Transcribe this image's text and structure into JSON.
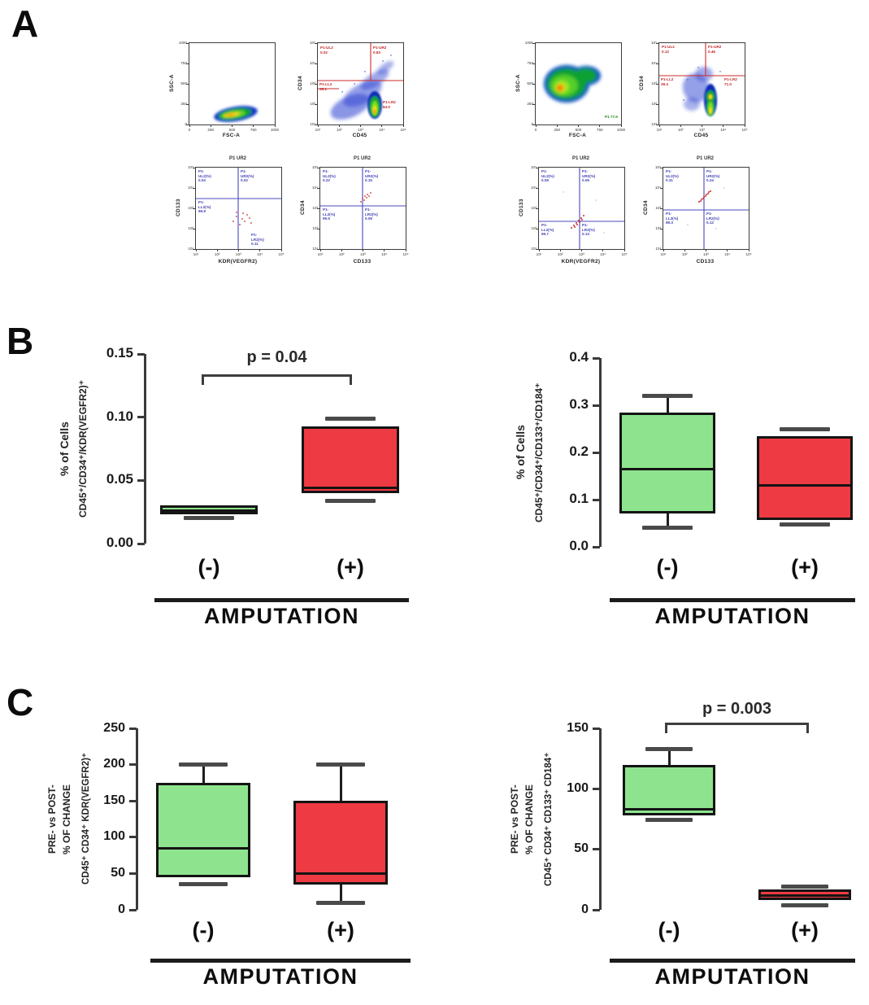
{
  "panels": {
    "a": "A",
    "b": "B",
    "c": "C"
  },
  "flow": {
    "log_ticks": [
      "10¹",
      "10²",
      "10³",
      "10⁴",
      "10⁵"
    ],
    "lin_ticks": [
      "0",
      "250",
      "500",
      "750",
      "1000"
    ],
    "groups": [
      {
        "name": "amputation-negative-representative",
        "plots": [
          {
            "key": "scatter",
            "x_label": "FSC-A",
            "y_label": "SSC-A",
            "scale": "lin"
          },
          {
            "key": "cd45",
            "x_label": "CD45",
            "y_label": "CD34",
            "scale": "log",
            "gates": {
              "tl": "P1-UL2 0.02",
              "tr": "P1-UR2 0.83",
              "ml": "P1-LL2 35.1",
              "br": "P1-LR2 64.0"
            }
          },
          {
            "key": "kdr",
            "title": "P1 UR2",
            "x_label": "KDR(VEGFR2)",
            "y_label": "CD133",
            "scale": "log",
            "gates": {
              "tl": "P1-UL2(%) 0.04",
              "tr": "P1-UR2(%) 0.02",
              "ml": "P1-LL2(%) 99.8",
              "br": "P1-LR2(%) 0.11"
            }
          },
          {
            "key": "cd133",
            "title": "P1 UR2",
            "x_label": "CD133",
            "y_label": "CD34",
            "scale": "log",
            "gates": {
              "tl": "P1-UL2(%) 0.22",
              "tr": "P1-UR2(%) 0.15",
              "ml": "P1-LL2(%) 99.5",
              "br": "P1-LR2(%) 0.09"
            }
          }
        ]
      },
      {
        "name": "amputation-positive-representative",
        "plots": [
          {
            "key": "scatter",
            "x_label": "FSC-A",
            "y_label": "SSC-A",
            "scale": "lin",
            "corner_label": "P1 77.9"
          },
          {
            "key": "cd45",
            "x_label": "CD45",
            "y_label": "CD34",
            "scale": "log",
            "gates": {
              "tl": "P1-UL2 0.12",
              "tr": "P1-UR2 0.46",
              "ml": "P1-LL2 28.4",
              "br": "P1-LR2 71.0"
            }
          },
          {
            "key": "kdr",
            "title": "P1 UR2",
            "x_label": "KDR(VEGFR2)",
            "y_label": "CD133",
            "scale": "log",
            "gates": {
              "tl": "P1-UL2(%) 0.09",
              "tr": "P1-UR2(%) 0.06",
              "bl": "P1-LL2(%) 99.7",
              "br": "P1-LR2(%) 0.13"
            }
          },
          {
            "key": "cd133",
            "title": "P1 UR2",
            "x_label": "CD133",
            "y_label": "CD34",
            "scale": "log",
            "gates": {
              "tl": "P1-UL2(%) 0.31",
              "tr": "P1-UR2(%) 0.24",
              "bl": "P1-LL2(%) 99.3",
              "br": "P1-LR2(%) 0.12"
            }
          }
        ]
      }
    ]
  },
  "chart_data": [
    {
      "type": "box",
      "panel": "B-left",
      "p_label": "p = 0.04",
      "ylabel_lines": [
        "% of Cells",
        "CD45⁺/CD34⁺/KDR(VEGFR2)⁺"
      ],
      "xlabel": "AMPUTATION",
      "categories": [
        "(-)",
        "(+)"
      ],
      "ylim": [
        0,
        0.15
      ],
      "yticks": [
        0,
        0.05,
        0.1,
        0.15
      ],
      "ytick_labels": [
        "0.00",
        "0.05",
        "0.10",
        "0.15"
      ],
      "grid": false,
      "series": [
        {
          "name": "amputation-negative",
          "color": "#8ee48e",
          "box": {
            "low": 0.02,
            "q1": 0.023,
            "median": 0.026,
            "q3": 0.03,
            "high": null
          }
        },
        {
          "name": "amputation-positive",
          "color": "#ee3a42",
          "box": {
            "low": 0.034,
            "q1": 0.04,
            "median": 0.044,
            "q3": 0.093,
            "high": 0.099
          }
        }
      ]
    },
    {
      "type": "box",
      "panel": "B-right",
      "p_label": null,
      "ylabel_lines": [
        "% of Cells",
        "CD45⁺/CD34⁺/CD133⁺/CD184⁺"
      ],
      "xlabel": "AMPUTATION",
      "categories": [
        "(-)",
        "(+)"
      ],
      "ylim": [
        0,
        0.4
      ],
      "yticks": [
        0,
        0.1,
        0.2,
        0.3,
        0.4
      ],
      "ytick_labels": [
        "0.0",
        "0.1",
        "0.2",
        "0.3",
        "0.4"
      ],
      "grid": false,
      "series": [
        {
          "name": "amputation-negative",
          "color": "#8ee48e",
          "box": {
            "low": 0.04,
            "q1": 0.07,
            "median": 0.165,
            "q3": 0.285,
            "high": 0.32
          }
        },
        {
          "name": "amputation-positive",
          "color": "#ee3a42",
          "box": {
            "low": 0.048,
            "q1": 0.057,
            "median": 0.13,
            "q3": 0.235,
            "high": 0.25
          }
        }
      ]
    },
    {
      "type": "box",
      "panel": "C-left",
      "p_label": null,
      "ylabel_lines": [
        "PRE- vs POST-",
        "% OF CHANGE",
        "CD45⁺ CD34⁺ KDR(VEGFR2)⁺"
      ],
      "xlabel": "AMPUTATION",
      "categories": [
        "(-)",
        "(+)"
      ],
      "ylim": [
        0,
        250
      ],
      "yticks": [
        0,
        50,
        100,
        150,
        200,
        250
      ],
      "ytick_labels": [
        "0",
        "50",
        "100",
        "150",
        "200",
        "250"
      ],
      "grid": false,
      "series": [
        {
          "name": "amputation-negative",
          "color": "#8ee48e",
          "box": {
            "low": 35,
            "q1": 45,
            "median": 85,
            "q3": 175,
            "high": 200
          }
        },
        {
          "name": "amputation-positive",
          "color": "#ee3a42",
          "box": {
            "low": 10,
            "q1": 35,
            "median": 50,
            "q3": 150,
            "high": 200
          }
        }
      ]
    },
    {
      "type": "box",
      "panel": "C-right",
      "p_label": "p = 0.003",
      "ylabel_lines": [
        "PRE- vs POST-",
        "% OF CHANGE",
        "CD45⁺ CD34⁺ CD133⁺ CD184⁺"
      ],
      "xlabel": "AMPUTATION",
      "categories": [
        "(-)",
        "(+)"
      ],
      "ylim": [
        0,
        150
      ],
      "yticks": [
        0,
        50,
        100,
        150
      ],
      "ytick_labels": [
        "0",
        "50",
        "100",
        "150"
      ],
      "grid": false,
      "series": [
        {
          "name": "amputation-negative",
          "color": "#8ee48e",
          "box": {
            "low": 74,
            "q1": 78,
            "median": 83,
            "q3": 120,
            "high": 133
          }
        },
        {
          "name": "amputation-positive",
          "color": "#ee3a42",
          "box": {
            "low": 4,
            "q1": 8,
            "median": 12,
            "q3": 17,
            "high": 19.5
          }
        }
      ]
    }
  ]
}
